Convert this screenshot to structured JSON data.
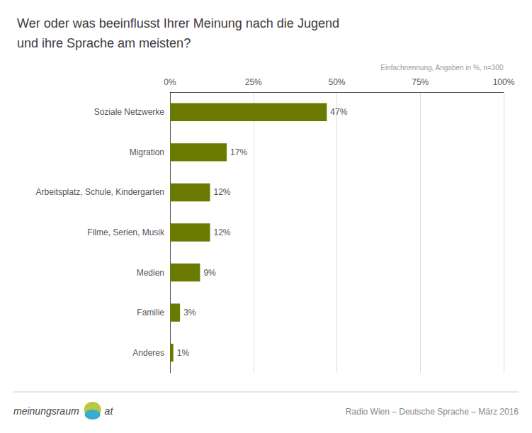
{
  "chart_data": {
    "type": "bar",
    "orientation": "horizontal",
    "title": "Wer oder was beeinflusst Ihrer Meinung nach die Jugend\nund ihre Sprache am meisten?",
    "categories": [
      "Soziale Netzwerke",
      "Migration",
      "Arbeitsplatz, Schule, Kindergarten",
      "Filme, Serien, Musik",
      "Medien",
      "Familie",
      "Anderes"
    ],
    "values": [
      47,
      17,
      12,
      12,
      9,
      3,
      1
    ],
    "value_labels": [
      "47%",
      "17%",
      "12%",
      "12%",
      "9%",
      "3%",
      "1%"
    ],
    "data_labels": true,
    "color": "#6b7a00",
    "xlim": [
      0,
      100
    ],
    "xticks": [
      {
        "value": 0,
        "label": "0%"
      },
      {
        "value": 25,
        "label": "25%"
      },
      {
        "value": 50,
        "label": "50%"
      },
      {
        "value": 75,
        "label": "75%"
      },
      {
        "value": 100,
        "label": "100%"
      }
    ],
    "grid": true,
    "annotations": [
      "Einfachnennung, Angaben in %, n=300",
      "meinungsraum",
      "at",
      "Radio Wien – Deutsche Sprache – März 2016"
    ]
  }
}
